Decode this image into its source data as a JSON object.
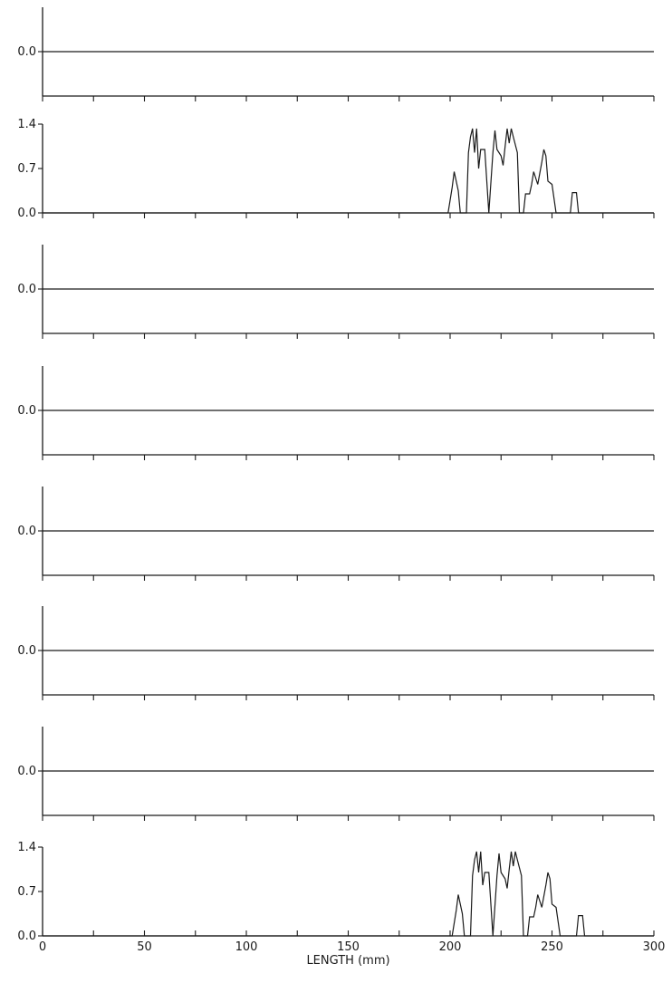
{
  "chart_data": {
    "type": "line",
    "xlabel": "LENGTH (mm)",
    "xlim": [
      0,
      300
    ],
    "x_tick_step": 25,
    "x_tick_labels": [
      "0",
      "50",
      "100",
      "150",
      "200",
      "250",
      "300"
    ],
    "panels": [
      {
        "ylim": [
          -0.7,
          0.7
        ],
        "y_tick_labels": [
          "0.0"
        ],
        "y_tick_values": [
          0.0
        ],
        "points": [
          [
            0,
            0
          ],
          [
            300,
            0
          ]
        ]
      },
      {
        "ylim": [
          0.0,
          1.4
        ],
        "y_tick_labels": [
          "1.4",
          "0.7",
          "0.0"
        ],
        "y_tick_values": [
          1.4,
          0.7,
          0.0
        ],
        "points": [
          [
            0,
            0
          ],
          [
            199,
            0
          ],
          [
            201,
            0.4
          ],
          [
            202,
            0.65
          ],
          [
            204,
            0.35
          ],
          [
            205,
            0
          ],
          [
            208,
            0
          ],
          [
            209,
            0.95
          ],
          [
            210,
            1.2
          ],
          [
            211,
            1.33
          ],
          [
            212,
            0.95
          ],
          [
            213,
            1.33
          ],
          [
            214,
            0.7
          ],
          [
            215,
            1.0
          ],
          [
            217,
            1.0
          ],
          [
            219,
            0
          ],
          [
            221,
            0.95
          ],
          [
            222,
            1.3
          ],
          [
            223,
            1.0
          ],
          [
            224,
            0.95
          ],
          [
            225,
            0.9
          ],
          [
            226,
            0.75
          ],
          [
            227,
            1.05
          ],
          [
            228,
            1.33
          ],
          [
            229,
            1.1
          ],
          [
            230,
            1.33
          ],
          [
            231,
            1.2
          ],
          [
            233,
            0.95
          ],
          [
            234,
            0
          ],
          [
            236,
            0
          ],
          [
            237,
            0.3
          ],
          [
            239,
            0.3
          ],
          [
            240,
            0.45
          ],
          [
            241,
            0.65
          ],
          [
            243,
            0.45
          ],
          [
            245,
            0.8
          ],
          [
            246,
            1.0
          ],
          [
            247,
            0.9
          ],
          [
            248,
            0.5
          ],
          [
            250,
            0.45
          ],
          [
            252,
            0
          ],
          [
            259,
            0
          ],
          [
            260,
            0.32
          ],
          [
            262,
            0.32
          ],
          [
            263,
            0
          ],
          [
            300,
            0
          ]
        ]
      },
      {
        "ylim": [
          -0.7,
          0.7
        ],
        "y_tick_labels": [
          "0.0"
        ],
        "y_tick_values": [
          0.0
        ],
        "points": [
          [
            0,
            0
          ],
          [
            300,
            0
          ]
        ]
      },
      {
        "ylim": [
          -0.7,
          0.7
        ],
        "y_tick_labels": [
          "0.0"
        ],
        "y_tick_values": [
          0.0
        ],
        "points": [
          [
            0,
            0
          ],
          [
            300,
            0
          ]
        ]
      },
      {
        "ylim": [
          -0.7,
          0.7
        ],
        "y_tick_labels": [
          "0.0"
        ],
        "y_tick_values": [
          0.0
        ],
        "points": [
          [
            0,
            0
          ],
          [
            300,
            0
          ]
        ]
      },
      {
        "ylim": [
          -0.7,
          0.7
        ],
        "y_tick_labels": [
          "0.0"
        ],
        "y_tick_values": [
          0.0
        ],
        "points": [
          [
            0,
            0
          ],
          [
            300,
            0
          ]
        ]
      },
      {
        "ylim": [
          -0.7,
          0.7
        ],
        "y_tick_labels": [
          "0.0"
        ],
        "y_tick_values": [
          0.0
        ],
        "points": [
          [
            0,
            0
          ],
          [
            300,
            0
          ]
        ]
      },
      {
        "ylim": [
          0.0,
          1.4
        ],
        "y_tick_labels": [
          "1.4",
          "0.7",
          "0.0"
        ],
        "y_tick_values": [
          1.4,
          0.7,
          0.0
        ],
        "points": [
          [
            0,
            0
          ],
          [
            201,
            0
          ],
          [
            203,
            0.4
          ],
          [
            204,
            0.65
          ],
          [
            206,
            0.35
          ],
          [
            207,
            0
          ],
          [
            210,
            0
          ],
          [
            211,
            0.95
          ],
          [
            212,
            1.2
          ],
          [
            213,
            1.33
          ],
          [
            214,
            1.0
          ],
          [
            215,
            1.33
          ],
          [
            216,
            0.8
          ],
          [
            217,
            1.0
          ],
          [
            219,
            1.0
          ],
          [
            221,
            0
          ],
          [
            223,
            0.95
          ],
          [
            224,
            1.3
          ],
          [
            225,
            1.0
          ],
          [
            226,
            0.95
          ],
          [
            227,
            0.9
          ],
          [
            228,
            0.75
          ],
          [
            229,
            1.05
          ],
          [
            230,
            1.33
          ],
          [
            231,
            1.1
          ],
          [
            232,
            1.33
          ],
          [
            233,
            1.2
          ],
          [
            235,
            0.95
          ],
          [
            236,
            0
          ],
          [
            238,
            0
          ],
          [
            239,
            0.3
          ],
          [
            241,
            0.3
          ],
          [
            242,
            0.45
          ],
          [
            243,
            0.65
          ],
          [
            245,
            0.45
          ],
          [
            247,
            0.8
          ],
          [
            248,
            1.0
          ],
          [
            249,
            0.9
          ],
          [
            250,
            0.5
          ],
          [
            252,
            0.45
          ],
          [
            254,
            0
          ],
          [
            262,
            0
          ],
          [
            263,
            0.32
          ],
          [
            265,
            0.32
          ],
          [
            266,
            0
          ],
          [
            300,
            0
          ]
        ]
      }
    ]
  }
}
